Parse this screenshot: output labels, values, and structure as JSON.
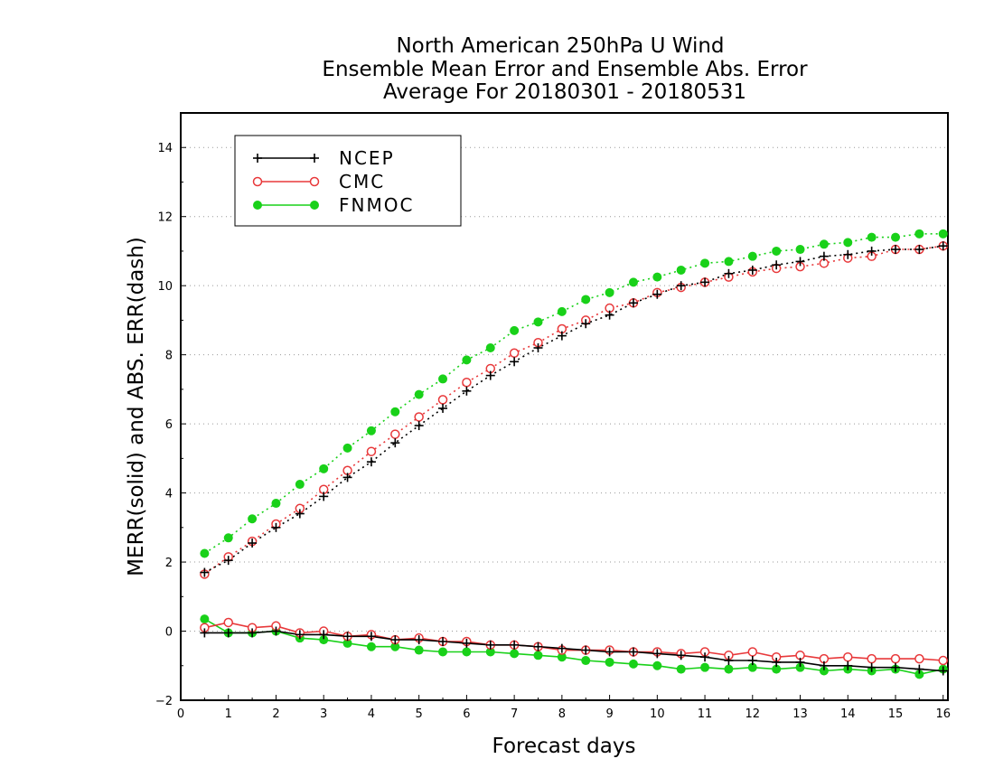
{
  "chart_data": {
    "type": "line",
    "title": [
      "North American 250hPa U Wind",
      "Ensemble Mean Error and Ensemble Abs. Error",
      "Average For 20180301 - 20180531"
    ],
    "xlabel": "Forecast days",
    "ylabel": "MERR(solid) and ABS. ERR(dash)",
    "xlim": [
      0,
      16.1
    ],
    "ylim": [
      -2,
      15
    ],
    "xticks": [
      0,
      1,
      2,
      3,
      4,
      5,
      6,
      7,
      8,
      9,
      10,
      11,
      12,
      13,
      14,
      15,
      16
    ],
    "yticks": [
      -2,
      0,
      2,
      4,
      6,
      8,
      10,
      12,
      14
    ],
    "grid": "horizontal dotted",
    "legend_position": "top-left",
    "x": [
      0.5,
      1,
      1.5,
      2,
      2.5,
      3,
      3.5,
      4,
      4.5,
      5,
      5.5,
      6,
      6.5,
      7,
      7.5,
      8,
      8.5,
      9,
      9.5,
      10,
      10.5,
      11,
      11.5,
      12,
      12.5,
      13,
      13.5,
      14,
      14.5,
      15,
      15.5,
      16
    ],
    "series": [
      {
        "name": "NCEP",
        "color": "#000000",
        "marker": "plus",
        "abs_err": [
          1.7,
          2.05,
          2.55,
          3.0,
          3.4,
          3.9,
          4.45,
          4.9,
          5.45,
          5.95,
          6.45,
          6.95,
          7.4,
          7.8,
          8.2,
          8.55,
          8.9,
          9.15,
          9.5,
          9.75,
          10.0,
          10.1,
          10.35,
          10.45,
          10.6,
          10.7,
          10.85,
          10.9,
          11.0,
          11.05,
          11.05,
          11.15
        ],
        "mean_err": [
          -0.05,
          -0.05,
          -0.05,
          0.0,
          -0.1,
          -0.1,
          -0.15,
          -0.15,
          -0.25,
          -0.25,
          -0.3,
          -0.35,
          -0.4,
          -0.4,
          -0.45,
          -0.5,
          -0.55,
          -0.6,
          -0.6,
          -0.65,
          -0.7,
          -0.75,
          -0.85,
          -0.85,
          -0.9,
          -0.9,
          -1.0,
          -1.0,
          -1.05,
          -1.05,
          -1.1,
          -1.15
        ]
      },
      {
        "name": "CMC",
        "color": "#e8383a",
        "marker": "open-circle",
        "abs_err": [
          1.65,
          2.15,
          2.6,
          3.1,
          3.55,
          4.1,
          4.65,
          5.2,
          5.7,
          6.2,
          6.7,
          7.2,
          7.6,
          8.05,
          8.35,
          8.75,
          9.0,
          9.35,
          9.5,
          9.8,
          9.95,
          10.1,
          10.25,
          10.4,
          10.5,
          10.55,
          10.65,
          10.8,
          10.85,
          11.05,
          11.05,
          11.15
        ],
        "mean_err": [
          0.1,
          0.25,
          0.1,
          0.15,
          -0.05,
          0.0,
          -0.15,
          -0.1,
          -0.25,
          -0.2,
          -0.3,
          -0.3,
          -0.4,
          -0.4,
          -0.45,
          -0.55,
          -0.55,
          -0.55,
          -0.6,
          -0.6,
          -0.65,
          -0.6,
          -0.7,
          -0.6,
          -0.75,
          -0.7,
          -0.8,
          -0.75,
          -0.8,
          -0.8,
          -0.8,
          -0.85
        ]
      },
      {
        "name": "FNMOC",
        "color": "#19d119",
        "marker": "filled-circle",
        "abs_err": [
          2.25,
          2.7,
          3.25,
          3.7,
          4.25,
          4.7,
          5.3,
          5.8,
          6.35,
          6.85,
          7.3,
          7.85,
          8.2,
          8.7,
          8.95,
          9.25,
          9.6,
          9.8,
          10.1,
          10.25,
          10.45,
          10.65,
          10.7,
          10.85,
          11.0,
          11.05,
          11.2,
          11.25,
          11.4,
          11.4,
          11.5,
          11.5
        ],
        "mean_err": [
          0.35,
          -0.05,
          -0.05,
          0.0,
          -0.2,
          -0.25,
          -0.35,
          -0.45,
          -0.45,
          -0.55,
          -0.6,
          -0.6,
          -0.6,
          -0.65,
          -0.7,
          -0.75,
          -0.85,
          -0.9,
          -0.95,
          -1.0,
          -1.1,
          -1.05,
          -1.1,
          -1.05,
          -1.1,
          -1.05,
          -1.15,
          -1.1,
          -1.15,
          -1.1,
          -1.25,
          -1.1
        ]
      }
    ]
  }
}
